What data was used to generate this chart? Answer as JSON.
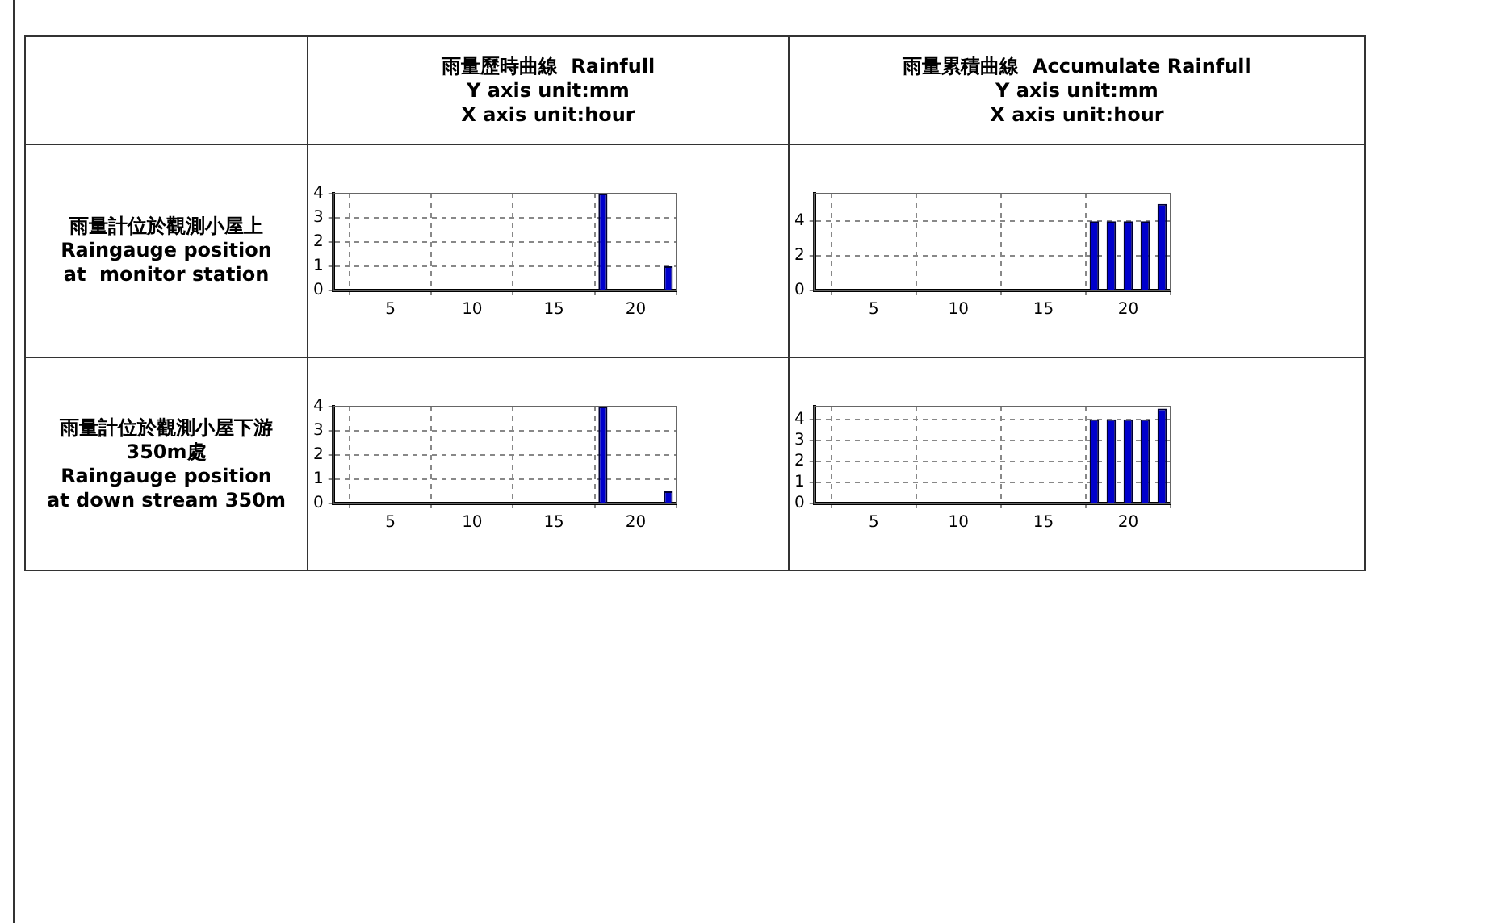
{
  "chart_data": [
    {
      "type": "bar",
      "title": "雨量歷時曲線  Rainfull",
      "ylabel": "Y axis unit:mm",
      "xlabel": "X axis unit:hour",
      "annotations": [
        "雨量計位於觀測小屋上\nRaingauge position\nat  monitor station"
      ],
      "x": [
        2,
        3,
        4,
        5,
        6,
        7,
        8,
        9,
        10,
        11,
        12,
        13,
        14,
        15,
        16,
        17,
        18,
        19,
        20,
        21,
        22
      ],
      "values": [
        0,
        0,
        0,
        0,
        0,
        0,
        0,
        0,
        0,
        0,
        0,
        0,
        0,
        0,
        0,
        0,
        4,
        0,
        0,
        0,
        1
      ],
      "color": "#0000cc",
      "xlim": [
        1.5,
        22.5
      ],
      "xticks": [
        5,
        10,
        15,
        20
      ],
      "ylim": [
        0,
        4
      ],
      "yticks": [
        0,
        1,
        2,
        3,
        4
      ],
      "grid": true
    },
    {
      "type": "bar",
      "title": "雨量累積曲線  Accumulate Rainfull",
      "ylabel": "Y axis unit:mm",
      "xlabel": "X axis unit:hour",
      "x": [
        2,
        3,
        4,
        5,
        6,
        7,
        8,
        9,
        10,
        11,
        12,
        13,
        14,
        15,
        16,
        17,
        18,
        19,
        20,
        21,
        22
      ],
      "values": [
        0,
        0,
        0,
        0,
        0,
        0,
        0,
        0,
        0,
        0,
        0,
        0,
        0,
        0,
        0,
        0,
        4,
        4,
        4,
        4,
        5
      ],
      "color": "#0000cc",
      "xlim": [
        1.5,
        22.5
      ],
      "xticks": [
        5,
        10,
        15,
        20
      ],
      "ylim": [
        0,
        5.6
      ],
      "yticks": [
        0,
        2,
        4
      ],
      "grid": true
    },
    {
      "type": "bar",
      "annotations": [
        "雨量計位於觀測小屋下游\n350m處\nRaingauge position\nat down stream 350m"
      ],
      "x": [
        2,
        3,
        4,
        5,
        6,
        7,
        8,
        9,
        10,
        11,
        12,
        13,
        14,
        15,
        16,
        17,
        18,
        19,
        20,
        21,
        22
      ],
      "values": [
        0,
        0,
        0,
        0,
        0,
        0,
        0,
        0,
        0,
        0,
        0,
        0,
        0,
        0,
        0,
        0,
        4,
        0,
        0,
        0,
        0.5
      ],
      "color": "#0000cc",
      "xlim": [
        1.5,
        22.5
      ],
      "xticks": [
        5,
        10,
        15,
        20
      ],
      "ylim": [
        0,
        4
      ],
      "yticks": [
        0,
        1,
        2,
        3,
        4
      ],
      "grid": true
    },
    {
      "type": "bar",
      "x": [
        2,
        3,
        4,
        5,
        6,
        7,
        8,
        9,
        10,
        11,
        12,
        13,
        14,
        15,
        16,
        17,
        18,
        19,
        20,
        21,
        22
      ],
      "values": [
        0,
        0,
        0,
        0,
        0,
        0,
        0,
        0,
        0,
        0,
        0,
        0,
        0,
        0,
        0,
        0,
        4,
        4,
        4,
        4,
        4.5
      ],
      "color": "#0000cc",
      "xlim": [
        1.5,
        22.5
      ],
      "xticks": [
        5,
        10,
        15,
        20
      ],
      "ylim": [
        0,
        4.6
      ],
      "yticks": [
        0,
        1,
        2,
        3,
        4
      ],
      "grid": true
    }
  ]
}
